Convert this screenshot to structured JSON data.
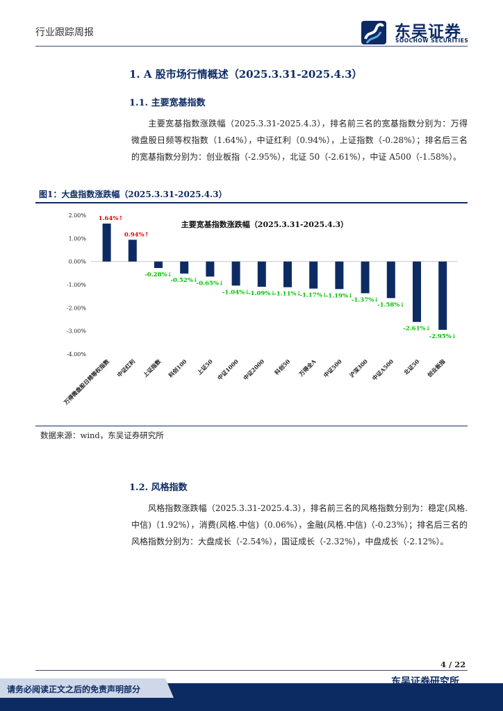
{
  "header": {
    "report_type": "行业跟踪周报",
    "logo_cn": "东吴证券",
    "logo_en": "SOOCHOW SECURITIES"
  },
  "section1": {
    "title": "1.  A 股市场行情概述（2025.3.31-2025.4.3）",
    "sub1_title": "1.1.   主要宽基指数",
    "sub1_para": "主要宽基指数涨跌幅（2025.3.31-2025.4.3），排名前三名的宽基指数分别为：万得微盘股日频等权指数（1.64%），中证红利（0.94%），上证指数（-0.28%）；排名后三名的宽基指数分别为：创业板指（-2.95%），北证 50（-2.61%），中证 A500（-1.58%）。",
    "figure_caption": "图1：大盘指数涨跌幅（2025.3.31-2025.4.3）",
    "figure_source": "数据来源：wind，东吴证券研究所",
    "sub2_title": "1.2.   风格指数",
    "sub2_para": "风格指数涨跌幅（2025.3.31-2025.4.3），排名前三名的风格指数分别为：稳定(风格.中信)（1.92%），消费(风格.中信)（0.06%），金融(风格.中信)（-0.23%）；排名后三名的风格指数分别为：大盘成长（-2.54%），国证成长（-2.32%），中盘成长（-2.12%）。"
  },
  "chart_data": {
    "type": "bar",
    "title": "主要宽基指数涨跌幅（2025.3.31-2025.4.3）",
    "categories": [
      "万得微盘股日频等权指数",
      "中证红利",
      "上证指数",
      "科创100",
      "上证50",
      "中证1000",
      "中证2000",
      "科创50",
      "万得全A",
      "中证500",
      "沪深300",
      "中证A500",
      "北证50",
      "创业板指"
    ],
    "values": [
      1.64,
      0.94,
      -0.28,
      -0.52,
      -0.65,
      -1.04,
      -1.09,
      -1.11,
      -1.17,
      -1.19,
      -1.37,
      -1.58,
      -2.61,
      -2.95
    ],
    "data_labels": [
      "1.64%↑",
      "0.94%↑",
      "-0.28%↓",
      "-0.52%↓",
      "-0.65%↓",
      "-1.04%↓",
      "-1.09%↓",
      "-1.11%↓",
      "-1.17%↓",
      "-1.19%↓",
      "-1.37%↓",
      "-1.58%↓",
      "-2.61%↓",
      "-2.95%↓"
    ],
    "yticks": [
      "2.00%",
      "1.00%",
      "0.00%",
      "-1.00%",
      "-2.00%",
      "-3.00%",
      "-4.00%"
    ],
    "ylim": [
      -4,
      2
    ],
    "bar_color": "#0d2b63",
    "pos_label_color": "#e60000",
    "neg_label_color": "#00c000"
  },
  "footer": {
    "page": "4 / 22",
    "org": "东吴证券研究所",
    "disclaimer": "请务必阅读正文之后的免责声明部分"
  }
}
